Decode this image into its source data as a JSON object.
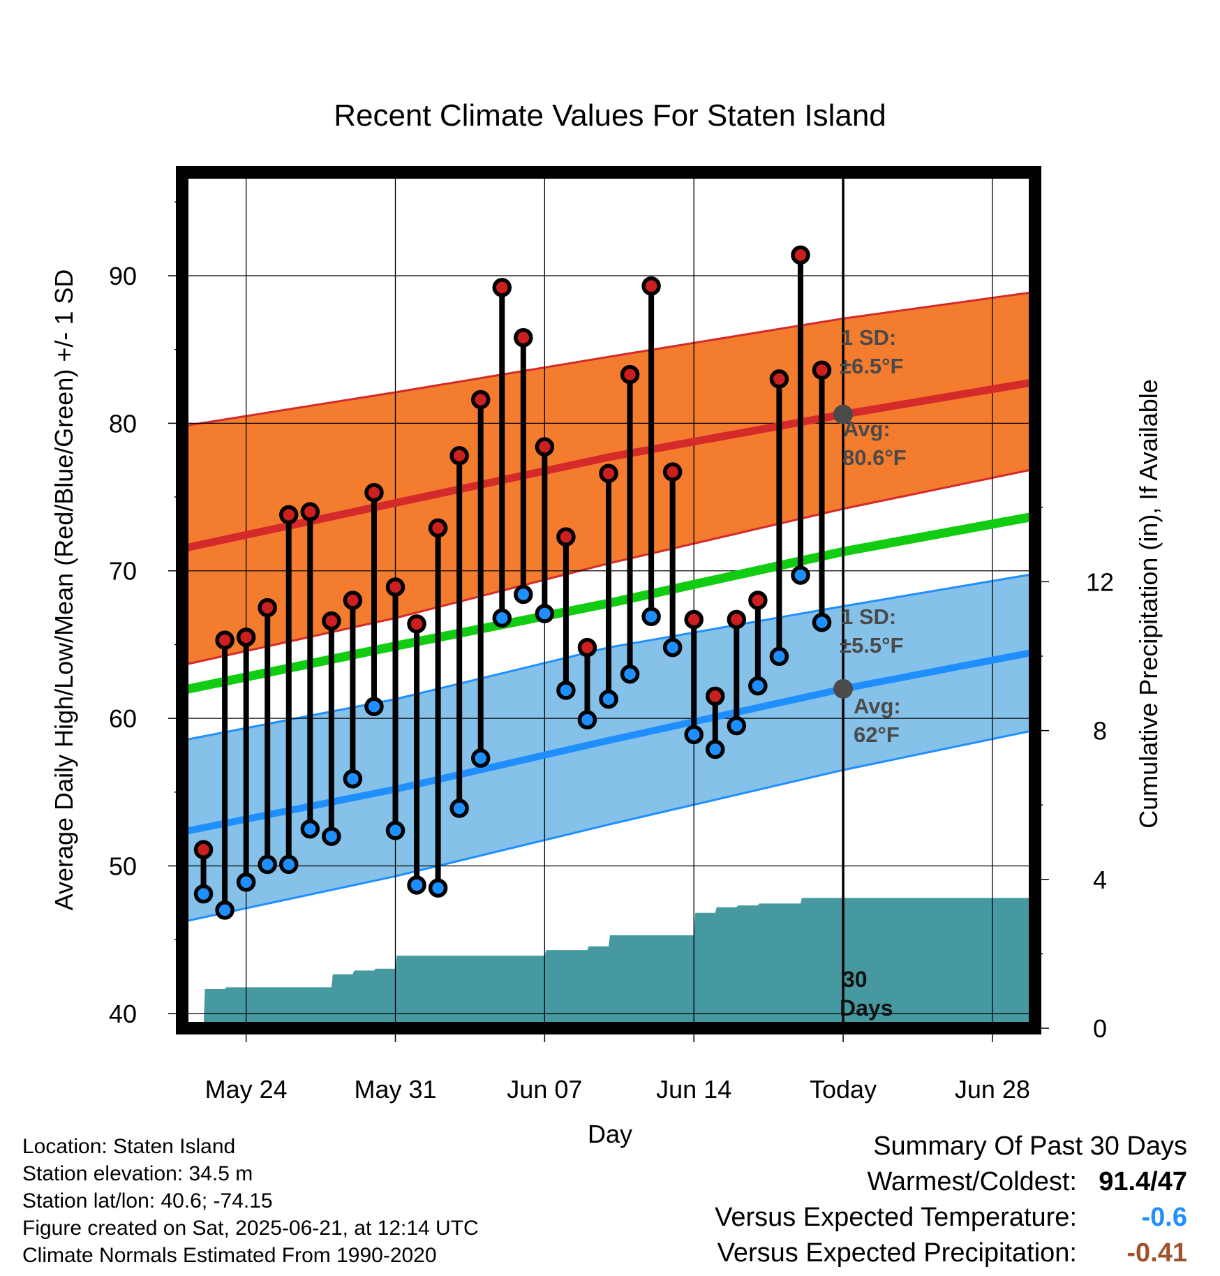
{
  "chart_data": {
    "type": "line",
    "title": "Recent Climate Values For Staten Island",
    "xlabel": "Day",
    "ylabel": "Average Daily High/Low/Mean (Red/Blue/Green) +/- 1 SD",
    "y2label": "Cumulative Precipitation (in), If Available",
    "ylim": [
      39,
      97
    ],
    "y2lim": [
      0,
      23
    ],
    "xlim": [
      "2025-05-21",
      "2025-06-30"
    ],
    "y_ticks": [
      "40",
      "50",
      "60",
      "70",
      "80",
      "90"
    ],
    "y2_ticks": [
      "0",
      "4",
      "8",
      "12"
    ],
    "x_ticks": [
      {
        "date": "2025-05-24",
        "label": "May 24"
      },
      {
        "date": "2025-05-31",
        "label": "May 31"
      },
      {
        "date": "2025-06-07",
        "label": "Jun 07"
      },
      {
        "date": "2025-06-14",
        "label": "Jun 14"
      },
      {
        "date": "2025-06-21",
        "label": "Today"
      },
      {
        "date": "2025-06-28",
        "label": "Jun 28"
      }
    ],
    "today": "2025-06-21",
    "grid": true,
    "normals": {
      "dates": [
        "2025-05-21",
        "2025-05-31",
        "2025-06-10",
        "2025-06-21",
        "2025-06-30"
      ],
      "high_mean": [
        71.5,
        74.6,
        77.7,
        80.6,
        82.8
      ],
      "high_upper": [
        79.8,
        82.1,
        84.5,
        87.1,
        88.9
      ],
      "high_lower": [
        63.6,
        66.8,
        70.5,
        74.2,
        76.9
      ],
      "low_mean": [
        52.3,
        55.2,
        58.5,
        62.0,
        64.5
      ],
      "low_upper": [
        58.5,
        61.3,
        64.8,
        67.6,
        69.8
      ],
      "low_lower": [
        46.2,
        49.3,
        52.8,
        56.5,
        59.2
      ],
      "mean": [
        61.9,
        64.9,
        67.8,
        71.3,
        73.7
      ]
    },
    "series": [
      {
        "name": "High",
        "color": "#cc1f1f",
        "dates": [
          "2025-05-22",
          "2025-05-23",
          "2025-05-24",
          "2025-05-25",
          "2025-05-26",
          "2025-05-27",
          "2025-05-28",
          "2025-05-29",
          "2025-05-30",
          "2025-05-31",
          "2025-06-01",
          "2025-06-02",
          "2025-06-03",
          "2025-06-04",
          "2025-06-05",
          "2025-06-06",
          "2025-06-07",
          "2025-06-08",
          "2025-06-09",
          "2025-06-10",
          "2025-06-11",
          "2025-06-12",
          "2025-06-13",
          "2025-06-14",
          "2025-06-15",
          "2025-06-16",
          "2025-06-17",
          "2025-06-18",
          "2025-06-19",
          "2025-06-20"
        ],
        "values": [
          51.1,
          65.3,
          65.5,
          67.5,
          73.8,
          74.0,
          66.6,
          68.0,
          75.3,
          68.9,
          66.4,
          72.9,
          77.8,
          81.6,
          89.2,
          85.8,
          78.4,
          72.3,
          64.8,
          76.6,
          83.3,
          89.3,
          76.7,
          66.7,
          61.5,
          66.7,
          68.0,
          83.0,
          91.4,
          83.6
        ]
      },
      {
        "name": "Low",
        "color": "#1f8fff",
        "dates": [
          "2025-05-22",
          "2025-05-23",
          "2025-05-24",
          "2025-05-25",
          "2025-05-26",
          "2025-05-27",
          "2025-05-28",
          "2025-05-29",
          "2025-05-30",
          "2025-05-31",
          "2025-06-01",
          "2025-06-02",
          "2025-06-03",
          "2025-06-04",
          "2025-06-05",
          "2025-06-06",
          "2025-06-07",
          "2025-06-08",
          "2025-06-09",
          "2025-06-10",
          "2025-06-11",
          "2025-06-12",
          "2025-06-13",
          "2025-06-14",
          "2025-06-15",
          "2025-06-16",
          "2025-06-17",
          "2025-06-18",
          "2025-06-19",
          "2025-06-20"
        ],
        "values": [
          48.1,
          47.0,
          48.9,
          50.1,
          50.1,
          52.5,
          52.0,
          55.9,
          60.8,
          52.4,
          48.7,
          48.5,
          53.9,
          57.3,
          66.8,
          68.4,
          67.1,
          61.9,
          59.9,
          61.3,
          63.0,
          66.9,
          64.8,
          58.9,
          57.9,
          59.5,
          62.2,
          64.2,
          69.7,
          66.5
        ]
      },
      {
        "name": "Cumulative Precipitation",
        "color": "#4799a1",
        "dates": [
          "2025-05-21",
          "2025-05-22",
          "2025-05-23",
          "2025-05-27",
          "2025-05-28",
          "2025-05-29",
          "2025-05-30",
          "2025-05-31",
          "2025-06-06",
          "2025-06-07",
          "2025-06-08",
          "2025-06-09",
          "2025-06-10",
          "2025-06-13",
          "2025-06-14",
          "2025-06-15",
          "2025-06-16",
          "2025-06-17",
          "2025-06-18",
          "2025-06-19",
          "2025-06-30"
        ],
        "values": [
          0.0,
          1.05,
          1.1,
          1.1,
          1.45,
          1.55,
          1.6,
          1.95,
          1.95,
          2.1,
          2.1,
          2.2,
          2.5,
          2.5,
          3.1,
          3.25,
          3.3,
          3.35,
          3.35,
          3.5,
          3.5
        ]
      }
    ],
    "annotations": {
      "high_sd_title": "1 SD:",
      "high_sd_value": "±6.5°F",
      "high_avg_title": "Avg:",
      "high_avg_value": "80.6°F",
      "low_sd_title": "1 SD:",
      "low_sd_value": "±5.5°F",
      "low_avg_title": "Avg:",
      "low_avg_value": "62°F",
      "period_number": "30",
      "period_unit": "Days"
    },
    "colors": {
      "high_band": "#f47c2e",
      "high_line": "#d42a2a",
      "low_band": "#85c1e8",
      "low_line": "#1f8fff",
      "mean_line": "#11cc11",
      "precip": "#4799a1",
      "avg_dot": "#4a4a4a"
    }
  },
  "info": {
    "location": "Location: Staten Island",
    "elevation": "Station elevation: 34.5 m",
    "latlon": "Station lat/lon: 40.6; -74.15",
    "created": "Figure created on Sat, 2025-06-21, at 12:14 UTC",
    "normals": "Climate Normals Estimated From 1990-2020"
  },
  "summary": {
    "title": "Summary Of Past 30 Days",
    "warmest_label": "Warmest/Coldest:",
    "warmest_value": "91.4/47",
    "temp_label": "Versus Expected Temperature:",
    "temp_value": "-0.6",
    "temp_color": "#1f8fff",
    "precip_label": "Versus Expected Precipitation:",
    "precip_value": "-0.41",
    "precip_color": "#a0522d"
  }
}
